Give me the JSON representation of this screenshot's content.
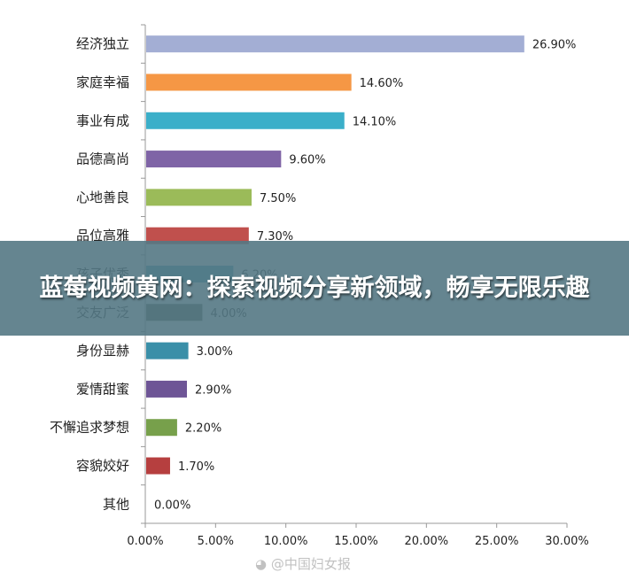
{
  "banner": {
    "title": "蓝莓视频黄网：探索视频分享新领域，畅享无限乐趣"
  },
  "watermark": {
    "text": "@中国妇女报",
    "icon": "weibo-logo-icon"
  },
  "chart_data": {
    "type": "bar",
    "orientation": "horizontal",
    "categories": [
      "经济独立",
      "家庭幸福",
      "事业有成",
      "品德高尚",
      "心地善良",
      "品位高雅",
      "孩子优秀",
      "交友广泛",
      "身份显赫",
      "爱情甜蜜",
      "不懈追求梦想",
      "容貌姣好",
      "其他"
    ],
    "values": [
      26.9,
      14.6,
      14.1,
      9.6,
      7.5,
      7.3,
      6.2,
      4.0,
      3.0,
      2.9,
      2.2,
      1.7,
      0.0
    ],
    "value_labels": [
      "26.90%",
      "14.60%",
      "14.10%",
      "9.60%",
      "7.50%",
      "7.30%",
      "6.20%",
      "4.00%",
      "3.00%",
      "2.90%",
      "2.20%",
      "1.70%",
      "0.00%"
    ],
    "colors": [
      "#a3aed4",
      "#f59745",
      "#3bafc9",
      "#7f64a6",
      "#9bbb59",
      "#c0504d",
      "#3f9eb3",
      "#4f5a4b",
      "#3a8fa8",
      "#6e5596",
      "#77a04b",
      "#b63f3f",
      "#888888"
    ],
    "xlim": [
      0,
      30
    ],
    "xticks": [
      "0.00%",
      "5.00%",
      "10.00%",
      "15.00%",
      "20.00%",
      "25.00%",
      "30.00%"
    ],
    "grid": false,
    "legend": "none"
  }
}
